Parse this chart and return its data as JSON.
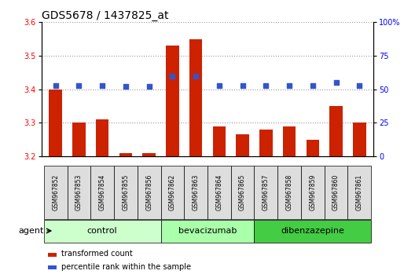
{
  "title": "GDS5678 / 1437825_at",
  "samples": [
    "GSM967852",
    "GSM967853",
    "GSM967854",
    "GSM967855",
    "GSM967856",
    "GSM967862",
    "GSM967863",
    "GSM967864",
    "GSM967865",
    "GSM967857",
    "GSM967858",
    "GSM967859",
    "GSM967860",
    "GSM967861"
  ],
  "bar_values": [
    3.4,
    3.3,
    3.31,
    3.21,
    3.21,
    3.53,
    3.55,
    3.29,
    3.265,
    3.28,
    3.29,
    3.25,
    3.35,
    3.3
  ],
  "dot_values": [
    53,
    53,
    53,
    52,
    52,
    60,
    60,
    53,
    53,
    53,
    53,
    53,
    55,
    53
  ],
  "ylim_left": [
    3.2,
    3.6
  ],
  "ylim_right": [
    0,
    100
  ],
  "yticks_left": [
    3.2,
    3.3,
    3.4,
    3.5,
    3.6
  ],
  "yticks_right": [
    0,
    25,
    50,
    75,
    100
  ],
  "ytick_labels_right": [
    "0",
    "25",
    "50",
    "75",
    "100%"
  ],
  "groups": [
    {
      "name": "control",
      "start": 0,
      "end": 5
    },
    {
      "name": "bevacizumab",
      "start": 5,
      "end": 9
    },
    {
      "name": "dibenzazepine",
      "start": 9,
      "end": 14
    }
  ],
  "group_colors": [
    "#ccffcc",
    "#aaffaa",
    "#44cc44"
  ],
  "bar_color": "#cc2200",
  "dot_color": "#3355cc",
  "bar_bottom": 3.2,
  "grid_style": "dotted",
  "grid_color": "#999999",
  "agent_label": "agent",
  "legend_bar_label": "transformed count",
  "legend_dot_label": "percentile rank within the sample",
  "title_fontsize": 10,
  "tick_fontsize": 7,
  "label_fontsize": 8,
  "sample_fontsize": 5.5
}
